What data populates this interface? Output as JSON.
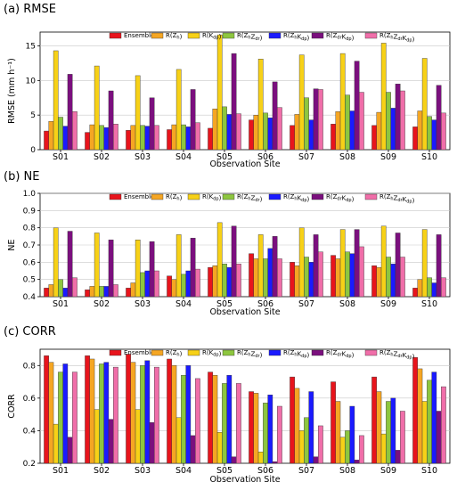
{
  "chart_data": [
    {
      "type": "bar",
      "title": "(a) RMSE",
      "xlabel": "Observation Site",
      "ylabel": "RMSE (mm h⁻¹)",
      "ylim": [
        0,
        17
      ],
      "yticks": [
        "0",
        "5",
        "10",
        "15"
      ],
      "ytick_values": [
        0,
        5,
        10,
        15
      ],
      "categories": [
        "S01",
        "S02",
        "S03",
        "S04",
        "S05",
        "S06",
        "S07",
        "S08",
        "S09",
        "S10"
      ],
      "legend_position": "top-right",
      "series": [
        {
          "name": "Ensemble",
          "color": "#e8141c",
          "values": [
            2.7,
            2.5,
            2.8,
            2.9,
            3.1,
            4.3,
            3.5,
            3.7,
            3.5,
            3.3
          ]
        },
        {
          "name": "R(Zh)",
          "color": "#f5a623",
          "values": [
            4.1,
            3.6,
            3.5,
            3.6,
            5.9,
            5.0,
            5.1,
            5.5,
            5.4,
            5.6
          ]
        },
        {
          "name": "R(Kdp)",
          "color": "#f7d117",
          "values": [
            14.3,
            12.1,
            10.7,
            11.6,
            16.6,
            13.1,
            13.7,
            13.9,
            15.4,
            13.2
          ]
        },
        {
          "name": "R(ZhZdr)",
          "color": "#8dc63f",
          "values": [
            4.7,
            3.5,
            3.5,
            3.6,
            6.2,
            5.3,
            7.5,
            7.9,
            8.3,
            4.8
          ]
        },
        {
          "name": "R(ZhKdp)",
          "color": "#1a1aff",
          "values": [
            3.4,
            3.2,
            3.4,
            3.3,
            5.1,
            4.6,
            4.3,
            5.6,
            6.0,
            4.3
          ]
        },
        {
          "name": "R(ZdrKdp)",
          "color": "#7b0f7e",
          "values": [
            10.9,
            8.5,
            7.5,
            8.7,
            13.9,
            9.8,
            8.8,
            12.8,
            9.5,
            9.3
          ]
        },
        {
          "name": "R(ZhZdrKdp)",
          "color": "#f06ea9",
          "values": [
            5.5,
            3.7,
            3.5,
            3.9,
            5.2,
            6.1,
            8.7,
            8.3,
            8.5,
            5.3
          ]
        }
      ]
    },
    {
      "type": "bar",
      "title": "(b) NE",
      "xlabel": "Observation Site",
      "ylabel": "NE",
      "ylim": [
        0.4,
        1.0
      ],
      "yticks": [
        "0.4",
        "0.5",
        "0.6",
        "0.7",
        "0.8",
        "0.9",
        "1.0"
      ],
      "ytick_values": [
        0.4,
        0.5,
        0.6,
        0.7,
        0.8,
        0.9,
        1.0
      ],
      "categories": [
        "S01",
        "S02",
        "S03",
        "S04",
        "S05",
        "S06",
        "S07",
        "S08",
        "S09",
        "S10"
      ],
      "legend_position": "top-right",
      "series": [
        {
          "name": "Ensemble",
          "color": "#e8141c",
          "values": [
            0.45,
            0.44,
            0.45,
            0.52,
            0.57,
            0.65,
            0.6,
            0.64,
            0.58,
            0.45
          ]
        },
        {
          "name": "R(Zh)",
          "color": "#f5a623",
          "values": [
            0.47,
            0.46,
            0.48,
            0.5,
            0.58,
            0.62,
            0.58,
            0.62,
            0.57,
            0.5
          ]
        },
        {
          "name": "R(Kdp)",
          "color": "#f7d117",
          "values": [
            0.8,
            0.77,
            0.73,
            0.76,
            0.83,
            0.76,
            0.8,
            0.79,
            0.81,
            0.79
          ]
        },
        {
          "name": "R(ZhZdr)",
          "color": "#8dc63f",
          "values": [
            0.5,
            0.46,
            0.54,
            0.53,
            0.59,
            0.62,
            0.63,
            0.66,
            0.63,
            0.51
          ]
        },
        {
          "name": "R(ZhKdp)",
          "color": "#1a1aff",
          "values": [
            0.45,
            0.46,
            0.55,
            0.55,
            0.57,
            0.68,
            0.6,
            0.65,
            0.59,
            0.48
          ]
        },
        {
          "name": "R(ZdrKdp)",
          "color": "#7b0f7e",
          "values": [
            0.78,
            0.73,
            0.72,
            0.74,
            0.81,
            0.75,
            0.76,
            0.79,
            0.77,
            0.76
          ]
        },
        {
          "name": "R(ZhZdrKdp)",
          "color": "#f06ea9",
          "values": [
            0.51,
            0.47,
            0.55,
            0.56,
            0.59,
            0.62,
            0.66,
            0.69,
            0.63,
            0.51
          ]
        }
      ]
    },
    {
      "type": "bar",
      "title": "(c) CORR",
      "xlabel": "Observation Site",
      "ylabel": "CORR",
      "ylim": [
        0.2,
        0.9
      ],
      "yticks": [
        "0.2",
        "0.4",
        "0.6",
        "0.8"
      ],
      "ytick_values": [
        0.2,
        0.4,
        0.6,
        0.8
      ],
      "categories": [
        "S01",
        "S02",
        "S03",
        "S04",
        "S05",
        "S06",
        "S07",
        "S08",
        "S09",
        "S10"
      ],
      "legend_position": "top-right",
      "series": [
        {
          "name": "Ensemble",
          "color": "#e8141c",
          "values": [
            0.86,
            0.86,
            0.87,
            0.84,
            0.76,
            0.64,
            0.73,
            0.7,
            0.73,
            0.85
          ]
        },
        {
          "name": "R(Zh)",
          "color": "#f5a623",
          "values": [
            0.82,
            0.84,
            0.82,
            0.8,
            0.74,
            0.63,
            0.66,
            0.58,
            0.64,
            0.78
          ]
        },
        {
          "name": "R(Kdp)",
          "color": "#f7d117",
          "values": [
            0.44,
            0.53,
            0.53,
            0.48,
            0.39,
            0.27,
            0.4,
            0.36,
            0.38,
            0.58
          ]
        },
        {
          "name": "R(ZhZdr)",
          "color": "#8dc63f",
          "values": [
            0.76,
            0.81,
            0.8,
            0.74,
            0.69,
            0.57,
            0.48,
            0.4,
            0.58,
            0.71
          ]
        },
        {
          "name": "R(ZhKdp)",
          "color": "#1a1aff",
          "values": [
            0.81,
            0.82,
            0.83,
            0.8,
            0.74,
            0.62,
            0.64,
            0.55,
            0.6,
            0.76
          ]
        },
        {
          "name": "R(ZdrKdp)",
          "color": "#7b0f7e",
          "values": [
            0.36,
            0.47,
            0.45,
            0.37,
            0.24,
            0.21,
            0.24,
            0.22,
            0.28,
            0.52
          ]
        },
        {
          "name": "R(ZhZdrKdp)",
          "color": "#f06ea9",
          "values": [
            0.76,
            0.79,
            0.79,
            0.72,
            0.69,
            0.55,
            0.43,
            0.37,
            0.52,
            0.67
          ]
        }
      ]
    }
  ]
}
